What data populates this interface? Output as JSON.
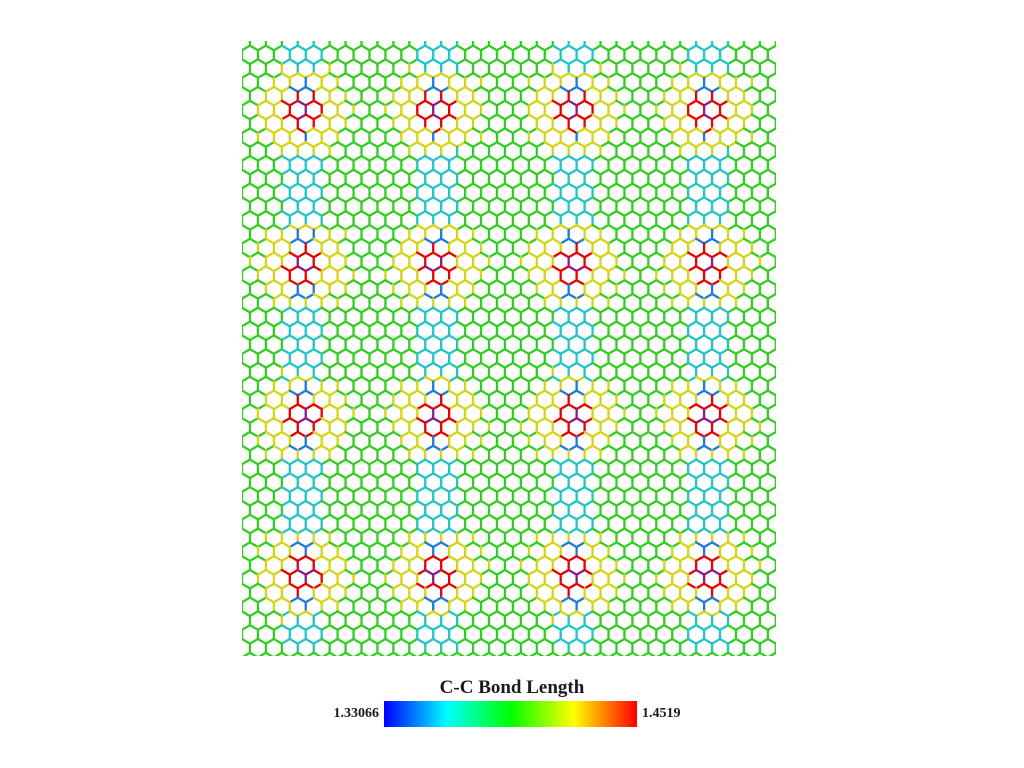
{
  "figure": {
    "type": "graphene-lattice-bond-length-map",
    "bond_color_levels": {
      "short": "#1e7ad8",
      "medium_short": "#22c4c4",
      "normal": "#33cc22",
      "medium_long": "#d4d418",
      "long": "#e60000",
      "core": "#8a1a8a"
    },
    "defect_grid": {
      "columns": 4,
      "rows": 4
    }
  },
  "colorbar": {
    "title": "C-C Bond Length",
    "min": "1.33066",
    "max": "1.4519",
    "colormap": [
      "#0000ff",
      "#00ffff",
      "#00ff00",
      "#ffff00",
      "#ff0000"
    ]
  }
}
